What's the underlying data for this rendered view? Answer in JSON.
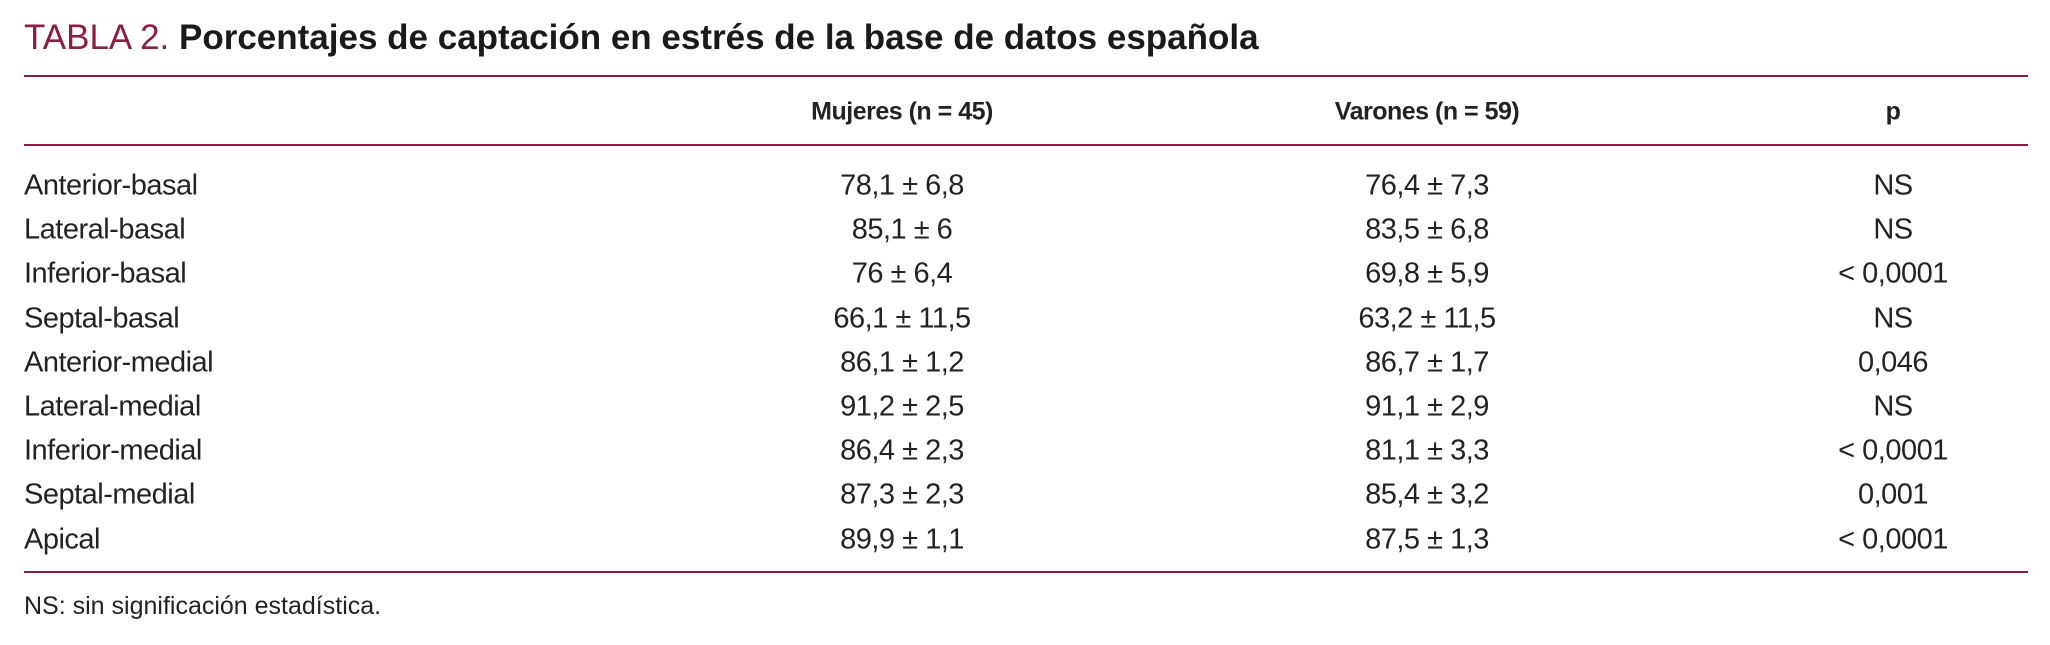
{
  "title": {
    "label": "TABLA 2.",
    "text": "Porcentajes de captación en estrés de la base de datos española"
  },
  "table": {
    "headers": [
      "Mujeres (n = 45)",
      "Varones (n = 59)",
      "p"
    ],
    "rows": [
      [
        "Anterior-basal",
        "78,1 ± 6,8",
        "76,4 ± 7,3",
        "NS"
      ],
      [
        "Lateral-basal",
        "85,1 ± 6",
        "83,5 ± 6,8",
        "NS"
      ],
      [
        "Inferior-basal",
        "76 ± 6,4",
        "69,8 ± 5,9",
        "< 0,0001"
      ],
      [
        "Septal-basal",
        "66,1 ± 11,5",
        "63,2 ± 11,5",
        "NS"
      ],
      [
        "Anterior-medial",
        "86,1 ± 1,2",
        "86,7 ± 1,7",
        "0,046"
      ],
      [
        "Lateral-medial",
        "91,2 ± 2,5",
        "91,1 ± 2,9",
        "NS"
      ],
      [
        "Inferior-medial",
        "86,4 ± 2,3",
        "81,1 ± 3,3",
        "< 0,0001"
      ],
      [
        "Septal-medial",
        "87,3 ± 2,3",
        "85,4 ± 3,2",
        "0,001"
      ],
      [
        "Apical",
        "89,9 ± 1,1",
        "87,5 ± 1,3",
        "< 0,0001"
      ]
    ]
  },
  "footnote": "NS: sin significación estadística."
}
